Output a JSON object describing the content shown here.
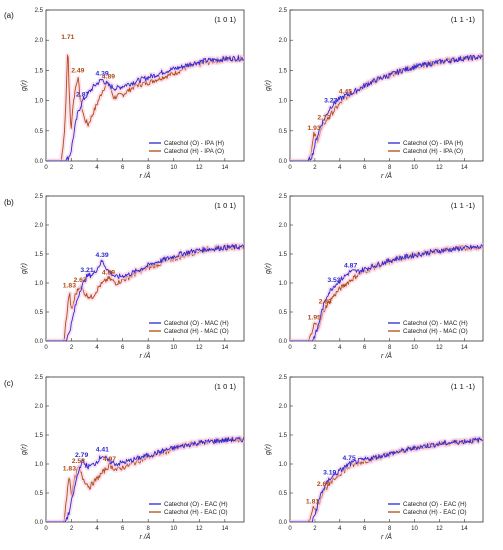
{
  "colors": {
    "blue": "#2b2bd2",
    "red": "#b24a14",
    "shade": "#f7c6df",
    "ink": "#222222"
  },
  "panels_meta": {
    "row_labels": [
      "(a)",
      "(b)",
      "(c)"
    ],
    "ylabel": "g(r)",
    "xlabel": "r /Å"
  },
  "chart_data": [
    {
      "type": "line",
      "row_label": "(a)",
      "plane": "(1 0 1)",
      "xlim": [
        0,
        15.5
      ],
      "ylim": [
        0,
        2.5
      ],
      "xticks": [
        0,
        2,
        4,
        6,
        8,
        10,
        12,
        14
      ],
      "yticks": [
        0.0,
        0.5,
        1.0,
        1.5,
        2.0,
        2.5
      ],
      "series": [
        {
          "name": "Catechol (O) - IPA (H)",
          "color": "blue",
          "x": [
            0,
            1.5,
            1.75,
            1.95,
            2.1,
            2.3,
            2.5,
            2.87,
            3.3,
            3.8,
            4.39,
            4.9,
            5.5,
            6.5,
            7.5,
            8.5,
            9.5,
            10.5,
            11.5,
            12.5,
            13.5,
            14.5,
            15.4
          ],
          "y": [
            0,
            0,
            0.05,
            0.15,
            0.35,
            0.6,
            0.8,
            1.0,
            1.12,
            1.25,
            1.35,
            1.25,
            1.2,
            1.28,
            1.35,
            1.42,
            1.5,
            1.55,
            1.62,
            1.66,
            1.68,
            1.7,
            1.7
          ]
        },
        {
          "name": "Catechol (H) - IPA (O)",
          "color": "red",
          "x": [
            0,
            1.2,
            1.45,
            1.6,
            1.71,
            1.82,
            1.95,
            2.1,
            2.3,
            2.49,
            2.7,
            3.0,
            3.3,
            3.7,
            4.1,
            4.5,
            4.89,
            5.3,
            6.0,
            7.0,
            8.0,
            9.0,
            10.0,
            11.0,
            12.0,
            13.0,
            14.0,
            15.4
          ],
          "y": [
            0,
            0,
            0.5,
            1.2,
            1.95,
            1.1,
            0.5,
            0.9,
            1.2,
            1.4,
            1.0,
            0.7,
            0.6,
            0.8,
            1.0,
            1.2,
            1.3,
            1.05,
            1.1,
            1.25,
            1.3,
            1.38,
            1.45,
            1.55,
            1.6,
            1.65,
            1.68,
            1.7
          ]
        }
      ],
      "peak_labels": [
        {
          "text": "1.71",
          "x": 1.71,
          "y": 1.95,
          "color": "red"
        },
        {
          "text": "2.49",
          "x": 2.49,
          "y": 1.4,
          "color": "red"
        },
        {
          "text": "2.87",
          "x": 2.87,
          "y": 1.0,
          "color": "blue"
        },
        {
          "text": "4.39",
          "x": 4.39,
          "y": 1.35,
          "color": "blue"
        },
        {
          "text": "4.89",
          "x": 4.89,
          "y": 1.3,
          "color": "red"
        }
      ]
    },
    {
      "type": "line",
      "row_label": "",
      "plane": "(1 1 -1)",
      "xlim": [
        0,
        15.5
      ],
      "ylim": [
        0,
        2.5
      ],
      "xticks": [
        0,
        2,
        4,
        6,
        8,
        10,
        12,
        14
      ],
      "yticks": [
        0.0,
        0.5,
        1.0,
        1.5,
        2.0,
        2.5
      ],
      "series": [
        {
          "name": "Catechol (O) - IPA (H)",
          "color": "blue",
          "x": [
            0,
            1.5,
            1.8,
            2.1,
            2.5,
            3.27,
            3.8,
            4.45,
            5.2,
            6.0,
            7.0,
            8.0,
            9.0,
            10.0,
            11.0,
            12.0,
            13.0,
            14.0,
            15.4
          ],
          "y": [
            0,
            0,
            0.1,
            0.35,
            0.6,
            0.9,
            1.0,
            1.08,
            1.15,
            1.25,
            1.35,
            1.42,
            1.5,
            1.56,
            1.6,
            1.64,
            1.67,
            1.7,
            1.72
          ]
        },
        {
          "name": "Catechol (H) - IPA (O)",
          "color": "red",
          "x": [
            0,
            1.5,
            1.75,
            1.93,
            2.2,
            2.73,
            3.2,
            3.8,
            4.45,
            5.2,
            6.0,
            7.0,
            8.0,
            9.0,
            10.0,
            11.0,
            12.0,
            13.0,
            14.0,
            15.4
          ],
          "y": [
            0,
            0,
            0.2,
            0.45,
            0.35,
            0.62,
            0.75,
            0.9,
            1.05,
            1.15,
            1.25,
            1.35,
            1.42,
            1.5,
            1.56,
            1.6,
            1.64,
            1.67,
            1.7,
            1.72
          ]
        }
      ],
      "peak_labels": [
        {
          "text": "1.93",
          "x": 1.93,
          "y": 0.45,
          "color": "red"
        },
        {
          "text": "2.73",
          "x": 2.73,
          "y": 0.62,
          "color": "red"
        },
        {
          "text": "3.27",
          "x": 3.27,
          "y": 0.9,
          "color": "blue"
        },
        {
          "text": "4.45",
          "x": 4.45,
          "y": 1.05,
          "color": "red"
        }
      ]
    },
    {
      "type": "line",
      "row_label": "(b)",
      "plane": "(1 0 1)",
      "xlim": [
        0,
        15.5
      ],
      "ylim": [
        0,
        2.5
      ],
      "xticks": [
        0,
        2,
        4,
        6,
        8,
        10,
        12,
        14
      ],
      "yticks": [
        0.0,
        0.5,
        1.0,
        1.5,
        2.0,
        2.5
      ],
      "series": [
        {
          "name": "Catechol (O) - MAC (H)",
          "color": "blue",
          "x": [
            0,
            1.5,
            1.75,
            2.0,
            2.3,
            2.7,
            3.21,
            3.7,
            4.39,
            4.9,
            5.5,
            6.5,
            7.5,
            8.5,
            9.5,
            10.5,
            11.5,
            12.5,
            13.5,
            14.5,
            15.4
          ],
          "y": [
            0,
            0,
            0.1,
            0.3,
            0.6,
            0.9,
            1.12,
            1.15,
            1.38,
            1.2,
            1.1,
            1.15,
            1.25,
            1.35,
            1.42,
            1.5,
            1.55,
            1.58,
            1.6,
            1.62,
            1.62
          ]
        },
        {
          "name": "Catechol (H) - MAC (O)",
          "color": "red",
          "x": [
            0,
            1.4,
            1.6,
            1.83,
            2.0,
            2.3,
            2.67,
            3.1,
            3.6,
            4.2,
            4.89,
            5.5,
            6.5,
            7.5,
            8.5,
            9.5,
            10.5,
            11.5,
            12.5,
            13.5,
            14.5,
            15.4
          ],
          "y": [
            0,
            0,
            0.4,
            0.85,
            0.5,
            0.8,
            0.95,
            0.8,
            0.75,
            0.95,
            1.08,
            1.0,
            1.1,
            1.22,
            1.3,
            1.38,
            1.45,
            1.52,
            1.58,
            1.6,
            1.62,
            1.62
          ]
        }
      ],
      "peak_labels": [
        {
          "text": "1.83",
          "x": 1.83,
          "y": 0.85,
          "color": "red"
        },
        {
          "text": "2.67",
          "x": 2.67,
          "y": 0.95,
          "color": "red"
        },
        {
          "text": "3.21",
          "x": 3.21,
          "y": 1.12,
          "color": "blue"
        },
        {
          "text": "4.39",
          "x": 4.39,
          "y": 1.38,
          "color": "blue"
        },
        {
          "text": "4.89",
          "x": 4.89,
          "y": 1.08,
          "color": "red"
        }
      ]
    },
    {
      "type": "line",
      "row_label": "",
      "plane": "(1 1 -1)",
      "xlim": [
        0,
        15.5
      ],
      "ylim": [
        0,
        2.5
      ],
      "xticks": [
        0,
        2,
        4,
        6,
        8,
        10,
        12,
        14
      ],
      "yticks": [
        0.0,
        0.5,
        1.0,
        1.5,
        2.0,
        2.5
      ],
      "series": [
        {
          "name": "Catechol (O) - MAC (H)",
          "color": "blue",
          "x": [
            0,
            1.8,
            2.2,
            2.6,
            3.0,
            3.53,
            4.2,
            4.87,
            5.5,
            6.5,
            7.5,
            8.5,
            9.5,
            10.5,
            11.5,
            12.5,
            13.5,
            14.5,
            15.4
          ],
          "y": [
            0,
            0,
            0.2,
            0.55,
            0.8,
            0.95,
            1.08,
            1.2,
            1.2,
            1.28,
            1.35,
            1.42,
            1.46,
            1.5,
            1.54,
            1.57,
            1.59,
            1.61,
            1.62
          ]
        },
        {
          "name": "Catechol (H) - MAC (O)",
          "color": "red",
          "x": [
            0,
            1.5,
            1.75,
            1.95,
            2.3,
            2.83,
            3.4,
            4.0,
            4.87,
            5.5,
            6.5,
            7.5,
            8.5,
            9.5,
            10.5,
            11.5,
            12.5,
            13.5,
            14.5,
            15.4
          ],
          "y": [
            0,
            0,
            0.12,
            0.3,
            0.25,
            0.58,
            0.75,
            0.9,
            1.05,
            1.15,
            1.25,
            1.33,
            1.4,
            1.45,
            1.5,
            1.54,
            1.57,
            1.6,
            1.61,
            1.62
          ]
        }
      ],
      "peak_labels": [
        {
          "text": "1.95",
          "x": 1.95,
          "y": 0.3,
          "color": "red"
        },
        {
          "text": "2.83",
          "x": 2.83,
          "y": 0.58,
          "color": "red"
        },
        {
          "text": "3.53",
          "x": 3.53,
          "y": 0.95,
          "color": "blue"
        },
        {
          "text": "4.87",
          "x": 4.87,
          "y": 1.2,
          "color": "blue"
        }
      ]
    },
    {
      "type": "line",
      "row_label": "(c)",
      "plane": "(1 0 1)",
      "xlim": [
        0,
        15.5
      ],
      "ylim": [
        0,
        2.5
      ],
      "xticks": [
        0,
        2,
        4,
        6,
        8,
        10,
        12,
        14
      ],
      "yticks": [
        0.0,
        0.5,
        1.0,
        1.5,
        2.0,
        2.5
      ],
      "series": [
        {
          "name": "Catechol (O) - EAC (H)",
          "color": "blue",
          "x": [
            0,
            1.5,
            1.8,
            2.1,
            2.4,
            2.79,
            3.3,
            3.8,
            4.41,
            4.9,
            5.5,
            6.5,
            7.5,
            8.5,
            9.5,
            10.5,
            11.5,
            12.5,
            13.5,
            14.5,
            15.4
          ],
          "y": [
            0,
            0,
            0.15,
            0.45,
            0.75,
            1.05,
            0.95,
            1.0,
            1.15,
            1.05,
            1.0,
            1.05,
            1.12,
            1.18,
            1.25,
            1.3,
            1.35,
            1.38,
            1.4,
            1.42,
            1.42
          ]
        },
        {
          "name": "Catechol (H) - EAC (O)",
          "color": "red",
          "x": [
            0,
            1.4,
            1.6,
            1.83,
            2.0,
            2.2,
            2.53,
            2.9,
            3.4,
            4.0,
            4.97,
            5.5,
            6.5,
            7.5,
            8.5,
            9.5,
            10.5,
            11.5,
            12.5,
            13.5,
            14.5,
            15.4
          ],
          "y": [
            0,
            0,
            0.4,
            0.82,
            0.45,
            0.7,
            0.95,
            0.75,
            0.6,
            0.75,
            0.98,
            0.9,
            0.98,
            1.08,
            1.15,
            1.22,
            1.3,
            1.35,
            1.38,
            1.4,
            1.42,
            1.42
          ]
        }
      ],
      "peak_labels": [
        {
          "text": "1.83",
          "x": 1.83,
          "y": 0.82,
          "color": "red"
        },
        {
          "text": "2.53",
          "x": 2.53,
          "y": 0.95,
          "color": "red"
        },
        {
          "text": "2.79",
          "x": 2.79,
          "y": 1.05,
          "color": "blue"
        },
        {
          "text": "4.41",
          "x": 4.41,
          "y": 1.15,
          "color": "blue"
        },
        {
          "text": "4.97",
          "x": 4.97,
          "y": 0.98,
          "color": "red"
        }
      ]
    },
    {
      "type": "line",
      "row_label": "",
      "plane": "(1 1 -1)",
      "xlim": [
        0,
        15.5
      ],
      "ylim": [
        0,
        2.5
      ],
      "xticks": [
        0,
        2,
        4,
        6,
        8,
        10,
        12,
        14
      ],
      "yticks": [
        0.0,
        0.5,
        1.0,
        1.5,
        2.0,
        2.5
      ],
      "series": [
        {
          "name": "Catechol (O) - EAC (H)",
          "color": "blue",
          "x": [
            0,
            1.8,
            2.1,
            2.5,
            3.19,
            3.8,
            4.75,
            5.5,
            6.5,
            7.5,
            8.5,
            9.5,
            10.5,
            11.5,
            12.5,
            13.5,
            14.5,
            15.4
          ],
          "y": [
            0,
            0,
            0.2,
            0.5,
            0.75,
            0.85,
            1.0,
            1.05,
            1.1,
            1.15,
            1.2,
            1.25,
            1.3,
            1.33,
            1.36,
            1.38,
            1.4,
            1.42
          ]
        },
        {
          "name": "Catechol (H) - EAC (O)",
          "color": "red",
          "x": [
            0,
            1.5,
            1.65,
            1.81,
            2.1,
            2.69,
            3.2,
            3.8,
            4.75,
            5.5,
            6.5,
            7.5,
            8.5,
            9.5,
            10.5,
            11.5,
            12.5,
            13.5,
            14.5,
            15.4
          ],
          "y": [
            0,
            0,
            0.1,
            0.25,
            0.2,
            0.55,
            0.65,
            0.8,
            0.95,
            1.02,
            1.08,
            1.14,
            1.2,
            1.25,
            1.3,
            1.33,
            1.36,
            1.38,
            1.4,
            1.42
          ]
        }
      ],
      "peak_labels": [
        {
          "text": "1.81",
          "x": 1.81,
          "y": 0.25,
          "color": "red"
        },
        {
          "text": "2.69",
          "x": 2.69,
          "y": 0.55,
          "color": "red"
        },
        {
          "text": "3.19",
          "x": 3.19,
          "y": 0.75,
          "color": "blue"
        },
        {
          "text": "4.75",
          "x": 4.75,
          "y": 1.0,
          "color": "blue"
        }
      ]
    }
  ]
}
